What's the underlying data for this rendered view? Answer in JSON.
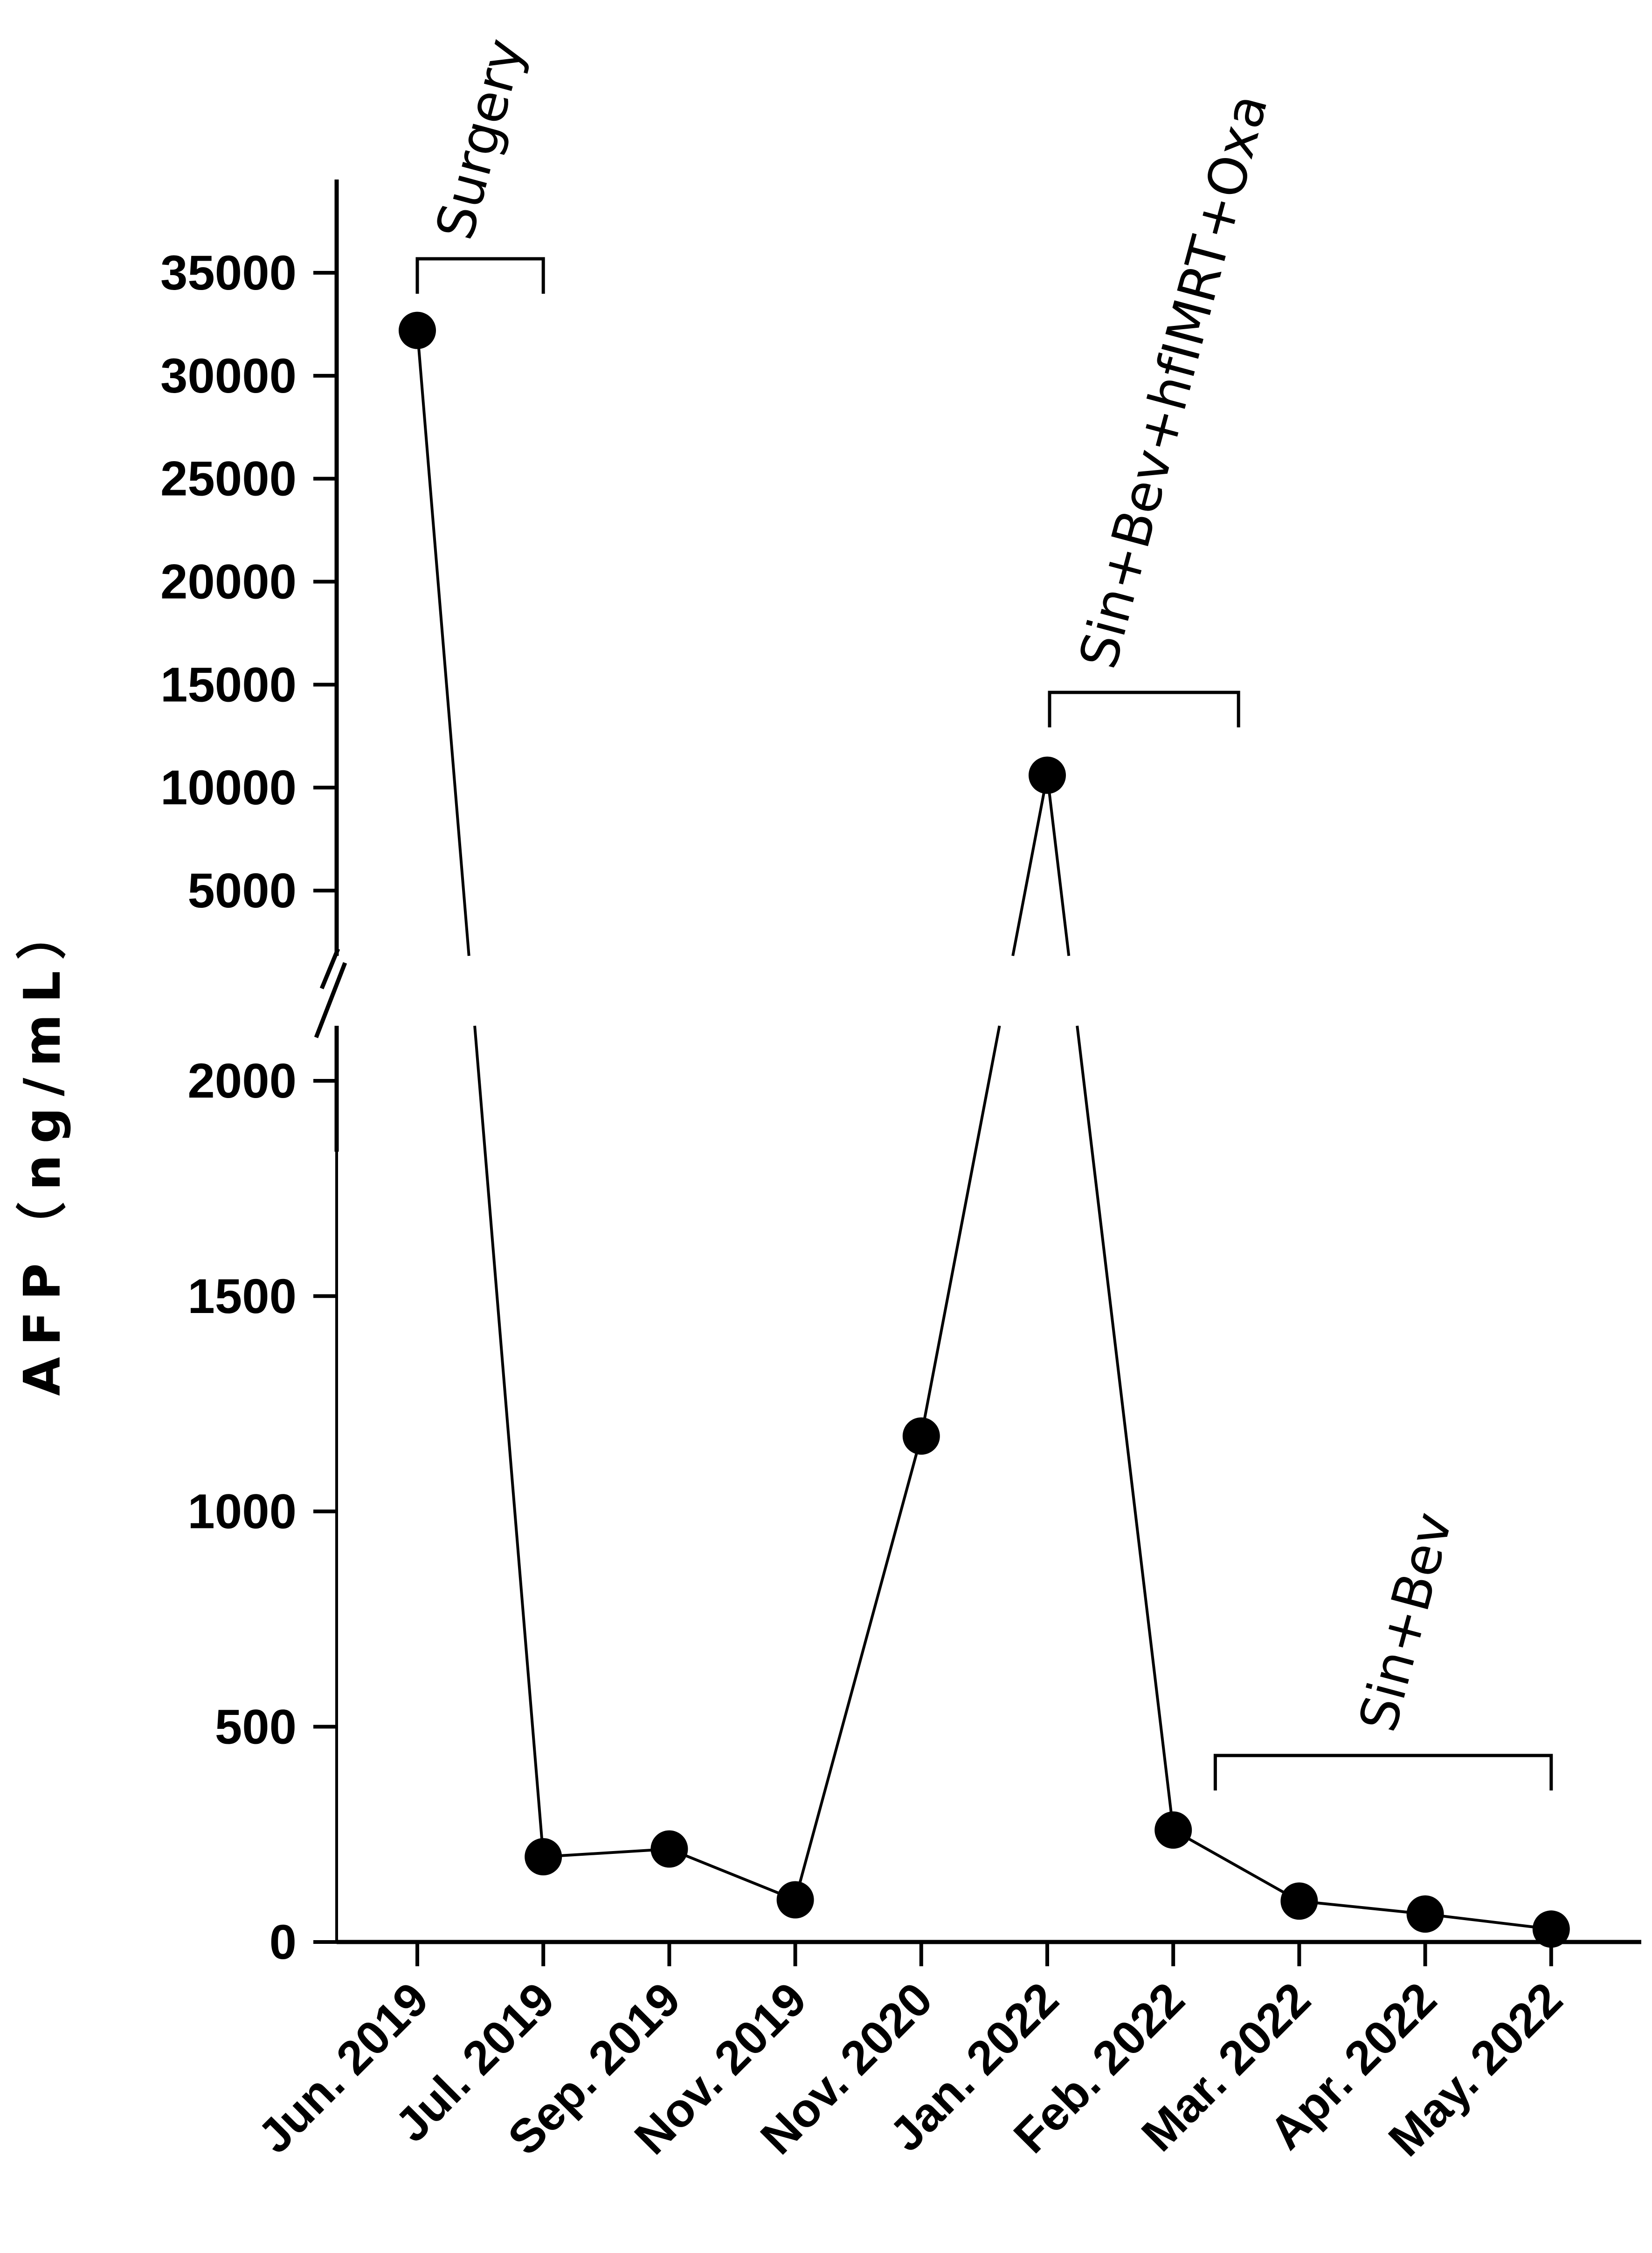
{
  "chart_data": {
    "type": "line",
    "title": "",
    "xlabel": "",
    "ylabel": "AFP（ng/mL）",
    "categories": [
      "Jun. 2019",
      "Jul. 2019",
      "Sep. 2019",
      "Nov. 2019",
      "Nov. 2020",
      "Jan. 2022",
      "Feb. 2022",
      "Mar. 2022",
      "Apr. 2022",
      "May. 2022"
    ],
    "series": [
      {
        "values": [
          32200,
          198,
          216,
          98,
          1175,
          10600,
          260,
          95,
          65,
          30
        ]
      }
    ],
    "y_axis": {
      "broken": true,
      "lower_segment": {
        "range": [
          0,
          2000
        ],
        "ticks": [
          "0",
          "500",
          "1000",
          "1500",
          "2000"
        ]
      },
      "upper_segment": {
        "range": [
          5000,
          35000
        ],
        "ticks": [
          "5000",
          "10000",
          "15000",
          "20000",
          "25000",
          "30000",
          "35000"
        ]
      }
    },
    "annotations": [
      {
        "label": "Surgery",
        "from": "Jun. 2019",
        "to": "Jul. 2019"
      },
      {
        "label": "Sin+Bev+hfIMRT+Oxa",
        "from": "Jan. 2022",
        "to": "Feb. 2022"
      },
      {
        "label": "Sin+Bev",
        "from": "Mar. 2022",
        "to": "May. 2022"
      }
    ],
    "grid": false,
    "legend": "none",
    "colors": {
      "line": "#000000",
      "marker": "#000000"
    }
  }
}
